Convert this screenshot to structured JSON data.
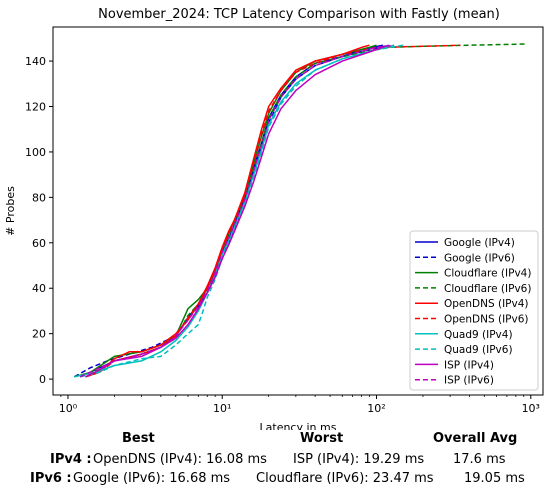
{
  "chart_data": {
    "type": "line",
    "title": "November_2024: TCP Latency Comparison with Fastly (mean)",
    "xlabel": "Latency in ms",
    "ylabel": "# Probes",
    "x_scale": "log",
    "xlim": [
      0.8,
      1200
    ],
    "ylim": [
      -7,
      155
    ],
    "xticks": [
      1,
      10,
      100,
      1000
    ],
    "xtick_labels": [
      "10⁰",
      "10¹",
      "10²",
      "10³"
    ],
    "yticks": [
      0,
      20,
      40,
      60,
      80,
      100,
      120,
      140
    ],
    "legend_position": "lower-right",
    "grid": false,
    "series": [
      {
        "name": "Google (IPv4)",
        "color": "#0000cc",
        "dash": "solid",
        "points": [
          [
            1.2,
            1
          ],
          [
            1.5,
            4
          ],
          [
            2,
            8
          ],
          [
            3,
            11
          ],
          [
            4,
            14
          ],
          [
            5,
            19
          ],
          [
            6,
            27
          ],
          [
            7,
            33
          ],
          [
            8,
            40
          ],
          [
            9,
            47
          ],
          [
            10,
            56
          ],
          [
            11,
            62
          ],
          [
            12,
            68
          ],
          [
            14,
            80
          ],
          [
            16,
            93
          ],
          [
            18,
            104
          ],
          [
            20,
            115
          ],
          [
            24,
            125
          ],
          [
            30,
            133
          ],
          [
            40,
            139
          ],
          [
            60,
            142
          ],
          [
            80,
            145
          ],
          [
            110,
            147
          ]
        ]
      },
      {
        "name": "Google (IPv6)",
        "color": "#0000cc",
        "dash": "dashed",
        "points": [
          [
            1.1,
            1
          ],
          [
            1.4,
            5
          ],
          [
            1.8,
            8
          ],
          [
            2.5,
            11
          ],
          [
            3.5,
            14
          ],
          [
            5,
            19
          ],
          [
            6,
            27
          ],
          [
            7,
            32
          ],
          [
            8,
            38
          ],
          [
            9,
            45
          ],
          [
            10,
            55
          ],
          [
            11,
            60
          ],
          [
            12,
            66
          ],
          [
            14,
            78
          ],
          [
            16,
            91
          ],
          [
            18,
            102
          ],
          [
            20,
            113
          ],
          [
            24,
            124
          ],
          [
            30,
            132
          ],
          [
            40,
            138
          ],
          [
            60,
            142
          ],
          [
            90,
            145
          ],
          [
            120,
            147
          ]
        ]
      },
      {
        "name": "Cloudflare (IPv4)",
        "color": "#008000",
        "dash": "solid",
        "points": [
          [
            1.1,
            1
          ],
          [
            1.4,
            3
          ],
          [
            2,
            10
          ],
          [
            3,
            12
          ],
          [
            4,
            15
          ],
          [
            5,
            19
          ],
          [
            6,
            31
          ],
          [
            7,
            35
          ],
          [
            8,
            40
          ],
          [
            9,
            48
          ],
          [
            10,
            57
          ],
          [
            11,
            64
          ],
          [
            12,
            70
          ],
          [
            14,
            81
          ],
          [
            16,
            95
          ],
          [
            18,
            107
          ],
          [
            20,
            117
          ],
          [
            24,
            127
          ],
          [
            30,
            135
          ],
          [
            40,
            140
          ],
          [
            60,
            143
          ],
          [
            90,
            146
          ],
          [
            100,
            147
          ]
        ]
      },
      {
        "name": "Cloudflare (IPv6)",
        "color": "#008000",
        "dash": "dashed",
        "points": [
          [
            1.2,
            1
          ],
          [
            1.6,
            4
          ],
          [
            2,
            8
          ],
          [
            3,
            11
          ],
          [
            4,
            14
          ],
          [
            5,
            18
          ],
          [
            6,
            28
          ],
          [
            7,
            33
          ],
          [
            8,
            39
          ],
          [
            9,
            46
          ],
          [
            10,
            56
          ],
          [
            11,
            63
          ],
          [
            12,
            69
          ],
          [
            14,
            80
          ],
          [
            16,
            93
          ],
          [
            18,
            104
          ],
          [
            20,
            115
          ],
          [
            24,
            125
          ],
          [
            30,
            133
          ],
          [
            40,
            139
          ],
          [
            70,
            143
          ],
          [
            120,
            146
          ],
          [
            200,
            146.5
          ],
          [
            400,
            147
          ],
          [
            950,
            147.5
          ]
        ]
      },
      {
        "name": "OpenDNS (IPv4)",
        "color": "#ff0000",
        "dash": "solid",
        "points": [
          [
            1.3,
            1
          ],
          [
            1.6,
            3
          ],
          [
            2,
            9
          ],
          [
            2.5,
            12
          ],
          [
            3,
            12
          ],
          [
            4,
            15
          ],
          [
            5,
            20
          ],
          [
            6,
            26
          ],
          [
            7,
            33
          ],
          [
            8,
            41
          ],
          [
            9,
            49
          ],
          [
            10,
            58
          ],
          [
            11,
            65
          ],
          [
            12,
            70
          ],
          [
            14,
            82
          ],
          [
            16,
            97
          ],
          [
            18,
            110
          ],
          [
            20,
            120
          ],
          [
            24,
            128
          ],
          [
            30,
            136
          ],
          [
            40,
            140
          ],
          [
            60,
            143
          ],
          [
            80,
            146
          ],
          [
            90,
            147
          ]
        ]
      },
      {
        "name": "OpenDNS (IPv6)",
        "color": "#ff0000",
        "dash": "dashed",
        "points": [
          [
            1.3,
            1
          ],
          [
            1.6,
            3
          ],
          [
            2,
            8
          ],
          [
            3,
            11
          ],
          [
            4,
            14
          ],
          [
            5,
            19
          ],
          [
            6,
            27
          ],
          [
            7,
            33
          ],
          [
            8,
            40
          ],
          [
            9,
            48
          ],
          [
            10,
            57
          ],
          [
            11,
            64
          ],
          [
            12,
            70
          ],
          [
            14,
            81
          ],
          [
            16,
            95
          ],
          [
            18,
            108
          ],
          [
            20,
            118
          ],
          [
            24,
            127
          ],
          [
            30,
            135
          ],
          [
            40,
            139
          ],
          [
            60,
            143
          ],
          [
            100,
            146
          ],
          [
            200,
            146.5
          ],
          [
            350,
            147
          ]
        ]
      },
      {
        "name": "Quad9 (IPv4)",
        "color": "#00bfbf",
        "dash": "solid",
        "points": [
          [
            1.1,
            1
          ],
          [
            1.5,
            3
          ],
          [
            2,
            6
          ],
          [
            3,
            8
          ],
          [
            4,
            12
          ],
          [
            5,
            17
          ],
          [
            6,
            23
          ],
          [
            7,
            30
          ],
          [
            8,
            38
          ],
          [
            9,
            46
          ],
          [
            10,
            55
          ],
          [
            11,
            61
          ],
          [
            12,
            67
          ],
          [
            14,
            78
          ],
          [
            16,
            90
          ],
          [
            18,
            101
          ],
          [
            20,
            112
          ],
          [
            24,
            122
          ],
          [
            30,
            130
          ],
          [
            40,
            136
          ],
          [
            60,
            141
          ],
          [
            100,
            145
          ],
          [
            130,
            147
          ]
        ]
      },
      {
        "name": "Quad9 (IPv6)",
        "color": "#00bfbf",
        "dash": "dashed",
        "points": [
          [
            1.2,
            1
          ],
          [
            1.6,
            3
          ],
          [
            2,
            6
          ],
          [
            3,
            9
          ],
          [
            4,
            10
          ],
          [
            5,
            15
          ],
          [
            6,
            20
          ],
          [
            7,
            24
          ],
          [
            7.5,
            30
          ],
          [
            8,
            36
          ],
          [
            9,
            44
          ],
          [
            10,
            53
          ],
          [
            11,
            60
          ],
          [
            12,
            66
          ],
          [
            14,
            77
          ],
          [
            16,
            89
          ],
          [
            18,
            100
          ],
          [
            20,
            111
          ],
          [
            24,
            121
          ],
          [
            30,
            129
          ],
          [
            40,
            136
          ],
          [
            60,
            141
          ],
          [
            100,
            145
          ],
          [
            150,
            147
          ]
        ]
      },
      {
        "name": "ISP (IPv4)",
        "color": "#bf00bf",
        "dash": "solid",
        "points": [
          [
            1.3,
            1
          ],
          [
            1.6,
            4
          ],
          [
            2,
            8
          ],
          [
            3,
            10
          ],
          [
            4,
            14
          ],
          [
            5,
            18
          ],
          [
            6,
            24
          ],
          [
            7,
            31
          ],
          [
            8,
            38
          ],
          [
            9,
            45
          ],
          [
            10,
            53
          ],
          [
            11,
            59
          ],
          [
            12,
            65
          ],
          [
            14,
            76
          ],
          [
            16,
            87
          ],
          [
            18,
            98
          ],
          [
            20,
            108
          ],
          [
            24,
            119
          ],
          [
            30,
            127
          ],
          [
            40,
            134
          ],
          [
            60,
            140
          ],
          [
            90,
            144
          ],
          [
            120,
            147
          ]
        ]
      },
      {
        "name": "ISP (IPv6)",
        "color": "#bf00bf",
        "dash": "dashed",
        "points": [
          [
            1.2,
            1
          ],
          [
            1.5,
            4
          ],
          [
            2,
            8
          ],
          [
            3,
            11
          ],
          [
            4,
            14
          ],
          [
            5,
            19
          ],
          [
            6,
            26
          ],
          [
            7,
            32
          ],
          [
            8,
            39
          ],
          [
            9,
            47
          ],
          [
            10,
            56
          ],
          [
            11,
            62
          ],
          [
            12,
            68
          ],
          [
            14,
            79
          ],
          [
            16,
            92
          ],
          [
            18,
            103
          ],
          [
            20,
            114
          ],
          [
            24,
            124
          ],
          [
            30,
            132
          ],
          [
            40,
            138
          ],
          [
            60,
            142
          ],
          [
            100,
            146
          ],
          [
            130,
            147
          ]
        ]
      }
    ]
  },
  "summary": {
    "headers": {
      "best": "Best",
      "worst": "Worst",
      "overall": "Overall Avg"
    },
    "rows": [
      {
        "label": "IPv4 :",
        "best": "OpenDNS (IPv4): 16.08 ms",
        "worst": "ISP (IPv4): 19.29 ms",
        "overall": "17.6 ms"
      },
      {
        "label": "IPv6 :",
        "best": "Google (IPv6): 16.68 ms",
        "worst": "Cloudflare (IPv6): 23.47 ms",
        "overall": "19.05 ms"
      }
    ]
  }
}
